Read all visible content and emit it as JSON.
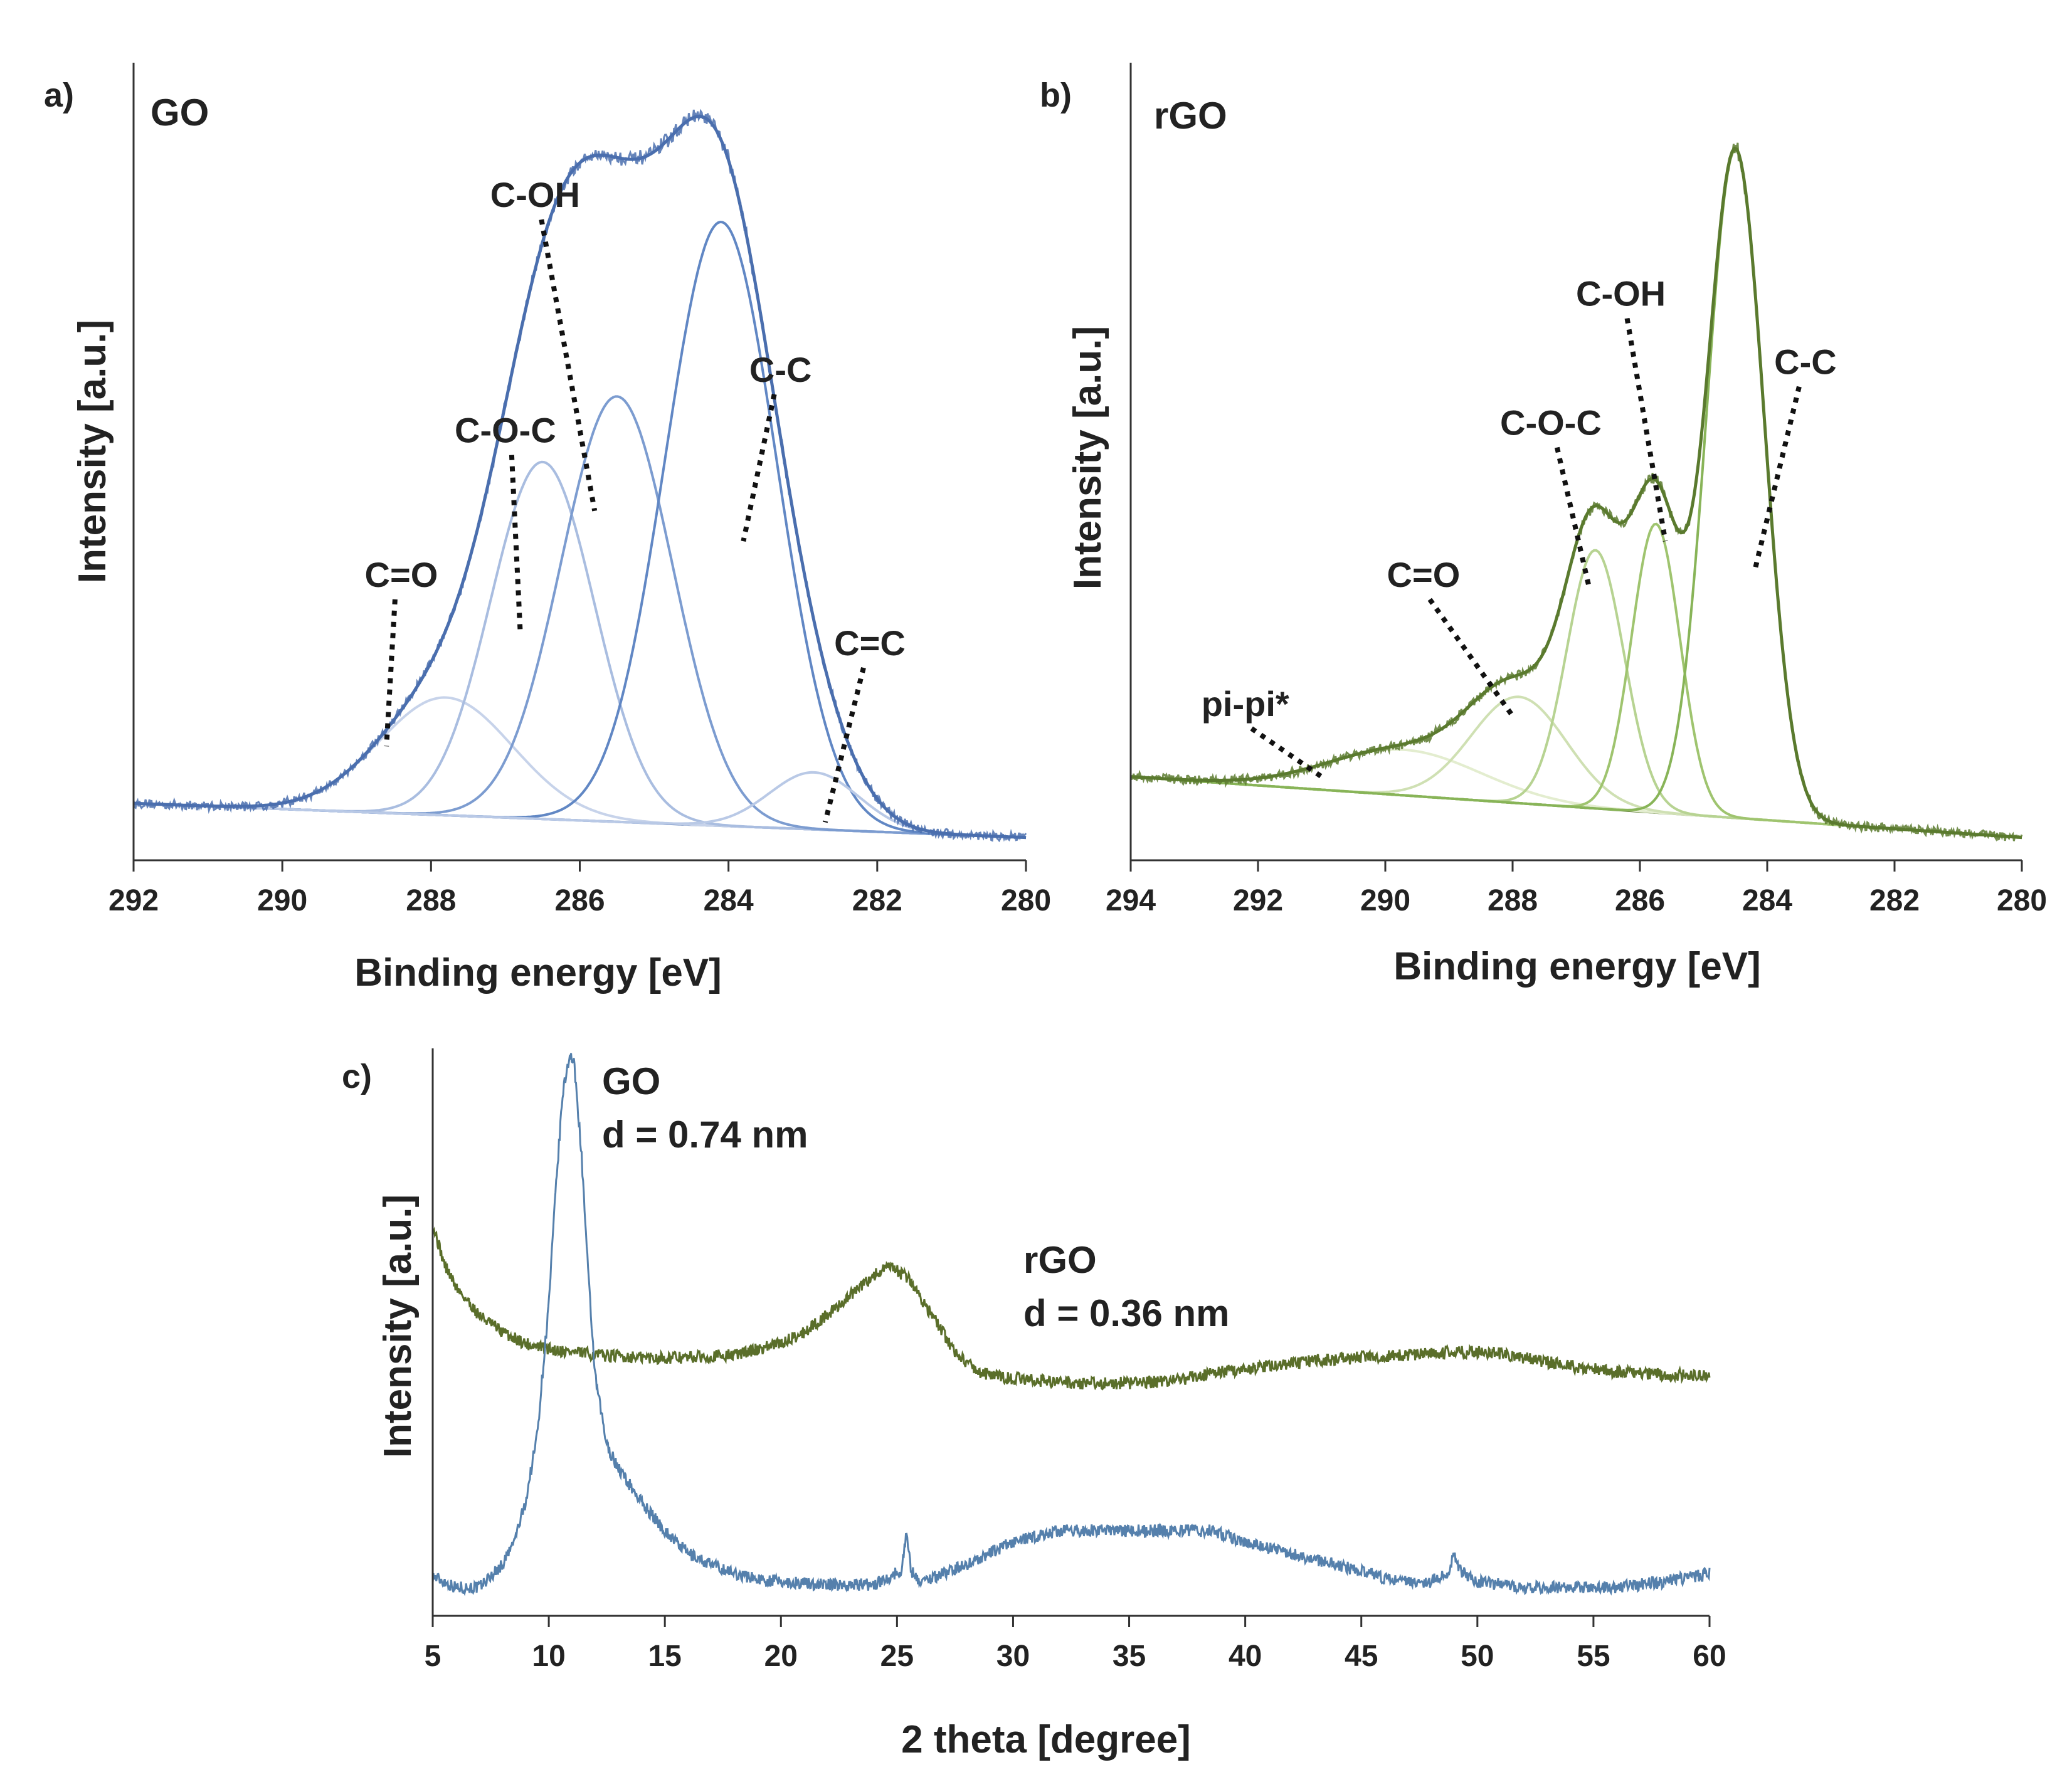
{
  "chart_data": [
    {
      "type": "line",
      "panel_label": "a)",
      "sample_label": "GO",
      "xlabel": "Binding energy [eV]",
      "ylabel": "Intensity [a.u.]",
      "xlim": [
        292,
        280
      ],
      "x_reversed": true,
      "xticks": [
        292,
        290,
        288,
        286,
        284,
        282,
        280
      ],
      "ylim": [
        0,
        1.05
      ],
      "grid": false,
      "baseline": {
        "start": 0.075,
        "end": 0.03
      },
      "components": [
        {
          "name": "C=O",
          "center": 287.8,
          "height": 0.155,
          "width": 0.9,
          "color": "#c7d3ea"
        },
        {
          "name": "C-O-C",
          "center": 286.5,
          "height": 0.47,
          "width": 0.7,
          "color": "#a9bde0"
        },
        {
          "name": "C-OH",
          "center": 285.5,
          "height": 0.56,
          "width": 0.75,
          "color": "#7c9cd0"
        },
        {
          "name": "C-C",
          "center": 284.1,
          "height": 0.795,
          "width": 0.75,
          "color": "#6187c4"
        },
        {
          "name": "C=C",
          "center": 282.85,
          "height": 0.075,
          "width": 0.6,
          "color": "#b9c9e6"
        }
      ],
      "envelope_color": "#4a6fae",
      "peak_labels": [
        {
          "text": "C=O",
          "label_x": 288.4,
          "label_y": 0.36,
          "pointer_x": 288.6,
          "pointer_y": 0.15
        },
        {
          "text": "C-O-C",
          "label_x": 287.0,
          "label_y": 0.55,
          "pointer_x": 286.8,
          "pointer_y": 0.3
        },
        {
          "text": "C-OH",
          "label_x": 286.6,
          "label_y": 0.86,
          "pointer_x": 285.8,
          "pointer_y": 0.46
        },
        {
          "text": "C-C",
          "label_x": 283.3,
          "label_y": 0.63,
          "pointer_x": 283.8,
          "pointer_y": 0.42
        },
        {
          "text": "C=C",
          "label_x": 282.1,
          "label_y": 0.27,
          "pointer_x": 282.7,
          "pointer_y": 0.05
        }
      ]
    },
    {
      "type": "line",
      "panel_label": "b)",
      "sample_label": "rGO",
      "xlabel": "Binding energy [eV]",
      "ylabel": "Intensity [a.u.]",
      "xlim": [
        294,
        280
      ],
      "x_reversed": true,
      "xticks": [
        294,
        292,
        290,
        288,
        286,
        284,
        282,
        280
      ],
      "ylim": [
        0,
        1.05
      ],
      "grid": false,
      "baseline": {
        "start": 0.11,
        "end": 0.03
      },
      "components": [
        {
          "name": "pi-pi*",
          "center": 289.7,
          "height": 0.06,
          "width": 1.2,
          "color": "#e3edcf"
        },
        {
          "name": "C=O",
          "center": 287.9,
          "height": 0.14,
          "width": 0.75,
          "color": "#cfe0b3"
        },
        {
          "name": "C-O-C",
          "center": 286.7,
          "height": 0.34,
          "width": 0.45,
          "color": "#b7d392"
        },
        {
          "name": "C-OH",
          "center": 285.75,
          "height": 0.38,
          "width": 0.38,
          "color": "#9fc46f"
        },
        {
          "name": "C-C",
          "center": 284.5,
          "height": 0.88,
          "width": 0.45,
          "color": "#88b458"
        }
      ],
      "envelope_color": "#5a7a2e",
      "peak_labels": [
        {
          "text": "pi-pi*",
          "label_x": 292.2,
          "label_y": 0.19,
          "pointer_x": 291.0,
          "pointer_y": 0.11
        },
        {
          "text": "C=O",
          "label_x": 289.4,
          "label_y": 0.36,
          "pointer_x": 288.0,
          "pointer_y": 0.19
        },
        {
          "text": "C-O-C",
          "label_x": 287.4,
          "label_y": 0.56,
          "pointer_x": 286.8,
          "pointer_y": 0.36
        },
        {
          "text": "C-OH",
          "label_x": 286.3,
          "label_y": 0.73,
          "pointer_x": 285.6,
          "pointer_y": 0.42
        },
        {
          "text": "C-C",
          "label_x": 283.4,
          "label_y": 0.64,
          "pointer_x": 284.2,
          "pointer_y": 0.38
        }
      ]
    },
    {
      "type": "line",
      "panel_label": "c)",
      "xlabel": "2 theta [degree]",
      "ylabel": "Intensity [a.u.]",
      "xlim": [
        5,
        60
      ],
      "xticks": [
        5,
        10,
        15,
        20,
        25,
        30,
        35,
        40,
        45,
        50,
        55,
        60
      ],
      "ylim": [
        0,
        1.0
      ],
      "grid": false,
      "series": [
        {
          "name": "rGO",
          "annotation": [
            "rGO",
            "d = 0.36 nm"
          ],
          "color": "#5a6e2a",
          "x": [
            5,
            5.5,
            6,
            7,
            8,
            9,
            10,
            12,
            14,
            16,
            18,
            20,
            21,
            22,
            23,
            24,
            24.7,
            25.5,
            26.5,
            27.5,
            28.5,
            29.5,
            31,
            33,
            35,
            37,
            39,
            41,
            43,
            45,
            47,
            49,
            50.5,
            52,
            54,
            56,
            58,
            60
          ],
          "y": [
            0.69,
            0.62,
            0.58,
            0.53,
            0.5,
            0.48,
            0.47,
            0.46,
            0.455,
            0.455,
            0.46,
            0.48,
            0.5,
            0.53,
            0.565,
            0.6,
            0.615,
            0.595,
            0.53,
            0.465,
            0.43,
            0.42,
            0.415,
            0.41,
            0.41,
            0.415,
            0.43,
            0.44,
            0.45,
            0.455,
            0.46,
            0.465,
            0.465,
            0.455,
            0.44,
            0.43,
            0.425,
            0.425
          ]
        },
        {
          "name": "GO",
          "annotation": [
            "GO",
            "d = 0.74 nm"
          ],
          "color": "#5580ac",
          "x": [
            5,
            6,
            7,
            8,
            8.5,
            9,
            9.5,
            10,
            10.3,
            10.6,
            10.9,
            11.1,
            11.4,
            11.7,
            12,
            12.5,
            13,
            14,
            15,
            16,
            17,
            18,
            19,
            20,
            22,
            24,
            25.2,
            25.4,
            25.6,
            26,
            27,
            28,
            30,
            32,
            35,
            38.5,
            40,
            42,
            44,
            46,
            48,
            48.8,
            49,
            49.2,
            50,
            52,
            54,
            56,
            58,
            60
          ],
          "y": [
            0.07,
            0.05,
            0.05,
            0.09,
            0.13,
            0.2,
            0.32,
            0.55,
            0.75,
            0.92,
            0.99,
            0.97,
            0.82,
            0.6,
            0.42,
            0.3,
            0.26,
            0.2,
            0.15,
            0.11,
            0.09,
            0.075,
            0.065,
            0.06,
            0.055,
            0.055,
            0.08,
            0.15,
            0.08,
            0.06,
            0.075,
            0.09,
            0.13,
            0.15,
            0.15,
            0.15,
            0.13,
            0.11,
            0.09,
            0.065,
            0.06,
            0.08,
            0.115,
            0.08,
            0.06,
            0.05,
            0.05,
            0.05,
            0.06,
            0.075
          ]
        }
      ]
    }
  ]
}
